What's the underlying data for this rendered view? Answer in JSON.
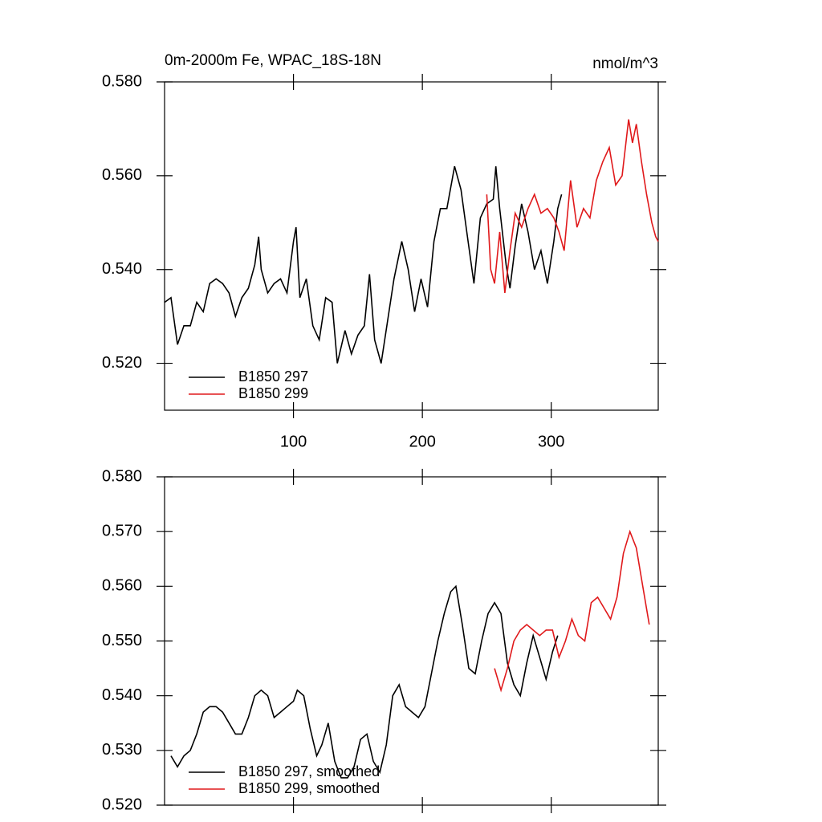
{
  "chart_data": [
    {
      "type": "line",
      "title": "0m-2000m Fe, WPAC_18S-18N",
      "unit_label": "nmol/m^3",
      "xlim": [
        0,
        383
      ],
      "xticks": [
        100,
        200,
        300
      ],
      "show_xtick_labels": true,
      "ylim": [
        0.51,
        0.58
      ],
      "yticks": [
        {
          "value": 0.52,
          "label": "0.520"
        },
        {
          "value": 0.54,
          "label": "0.540"
        },
        {
          "value": 0.56,
          "label": "0.560"
        },
        {
          "value": 0.58,
          "label": "0.580"
        }
      ],
      "legend": "lower left",
      "series": [
        {
          "name": "B1850 297",
          "color": "#000000",
          "x": [
            0,
            5,
            10,
            15,
            20,
            25,
            30,
            35,
            40,
            45,
            50,
            55,
            60,
            65,
            70,
            73,
            75,
            80,
            85,
            90,
            95,
            100,
            102,
            105,
            110,
            115,
            120,
            125,
            130,
            134,
            140,
            145,
            150,
            155,
            159,
            163,
            168,
            173,
            178,
            184,
            189,
            194,
            199,
            204,
            209,
            214,
            219,
            225,
            230,
            235,
            240,
            245,
            250,
            255,
            257,
            260,
            265,
            268,
            272,
            277,
            282,
            287,
            292,
            297,
            302,
            305,
            308
          ],
          "values": [
            0.533,
            0.534,
            0.524,
            0.528,
            0.528,
            0.533,
            0.531,
            0.537,
            0.538,
            0.537,
            0.535,
            0.53,
            0.534,
            0.536,
            0.541,
            0.547,
            0.54,
            0.535,
            0.537,
            0.538,
            0.535,
            0.546,
            0.549,
            0.534,
            0.538,
            0.528,
            0.525,
            0.534,
            0.533,
            0.52,
            0.527,
            0.522,
            0.526,
            0.528,
            0.539,
            0.525,
            0.52,
            0.529,
            0.538,
            0.546,
            0.54,
            0.531,
            0.538,
            0.532,
            0.546,
            0.553,
            0.553,
            0.562,
            0.557,
            0.547,
            0.537,
            0.551,
            0.554,
            0.555,
            0.562,
            0.553,
            0.541,
            0.536,
            0.545,
            0.554,
            0.548,
            0.54,
            0.544,
            0.537,
            0.546,
            0.553,
            0.556
          ]
        },
        {
          "name": "B1850 299",
          "color": "#e0191b",
          "x": [
            250,
            253,
            256,
            260,
            264,
            268,
            272,
            277,
            282,
            287,
            292,
            297,
            302,
            306,
            310,
            315,
            320,
            325,
            330,
            335,
            340,
            345,
            350,
            355,
            360,
            363,
            366,
            370,
            374,
            378,
            381,
            383
          ],
          "values": [
            0.556,
            0.54,
            0.537,
            0.548,
            0.535,
            0.544,
            0.552,
            0.549,
            0.553,
            0.556,
            0.552,
            0.553,
            0.551,
            0.548,
            0.544,
            0.559,
            0.549,
            0.553,
            0.551,
            0.559,
            0.563,
            0.566,
            0.558,
            0.56,
            0.572,
            0.567,
            0.571,
            0.563,
            0.556,
            0.55,
            0.547,
            0.546
          ]
        }
      ]
    },
    {
      "type": "line",
      "xlim": [
        0,
        383
      ],
      "xticks": [
        100,
        200,
        300
      ],
      "show_xtick_labels": false,
      "ylim": [
        0.52,
        0.58
      ],
      "yticks": [
        {
          "value": 0.52,
          "label": "0.520"
        },
        {
          "value": 0.53,
          "label": "0.530"
        },
        {
          "value": 0.54,
          "label": "0.540"
        },
        {
          "value": 0.55,
          "label": "0.550"
        },
        {
          "value": 0.56,
          "label": "0.560"
        },
        {
          "value": 0.57,
          "label": "0.570"
        },
        {
          "value": 0.58,
          "label": "0.580"
        }
      ],
      "legend": "lower left",
      "series": [
        {
          "name": "B1850 297, smoothed",
          "color": "#000000",
          "x": [
            5,
            10,
            15,
            20,
            25,
            30,
            35,
            40,
            45,
            50,
            55,
            60,
            65,
            70,
            75,
            80,
            85,
            90,
            95,
            100,
            103,
            108,
            113,
            118,
            122,
            127,
            132,
            137,
            142,
            147,
            152,
            157,
            162,
            167,
            172,
            177,
            182,
            187,
            192,
            197,
            202,
            207,
            212,
            217,
            222,
            226,
            231,
            236,
            241,
            246,
            251,
            256,
            261,
            266,
            271,
            276,
            281,
            286,
            291,
            296,
            301,
            305
          ],
          "values": [
            0.529,
            0.527,
            0.529,
            0.53,
            0.533,
            0.537,
            0.538,
            0.538,
            0.537,
            0.535,
            0.533,
            0.533,
            0.536,
            0.54,
            0.541,
            0.54,
            0.536,
            0.537,
            0.538,
            0.539,
            0.541,
            0.54,
            0.534,
            0.529,
            0.531,
            0.535,
            0.528,
            0.525,
            0.525,
            0.527,
            0.532,
            0.533,
            0.528,
            0.526,
            0.531,
            0.54,
            0.542,
            0.538,
            0.537,
            0.536,
            0.538,
            0.544,
            0.55,
            0.555,
            0.559,
            0.56,
            0.553,
            0.545,
            0.544,
            0.55,
            0.555,
            0.557,
            0.555,
            0.546,
            0.542,
            0.54,
            0.546,
            0.551,
            0.547,
            0.543,
            0.548,
            0.551
          ]
        },
        {
          "name": "B1850 299, smoothed",
          "color": "#e0191b",
          "x": [
            256,
            261,
            266,
            271,
            276,
            281,
            286,
            291,
            296,
            301,
            306,
            311,
            316,
            321,
            326,
            331,
            336,
            341,
            346,
            351,
            356,
            361,
            366,
            371,
            376
          ],
          "values": [
            0.545,
            0.541,
            0.545,
            0.55,
            0.552,
            0.553,
            0.552,
            0.551,
            0.552,
            0.552,
            0.547,
            0.55,
            0.554,
            0.551,
            0.55,
            0.557,
            0.558,
            0.556,
            0.554,
            0.558,
            0.566,
            0.57,
            0.567,
            0.56,
            0.553
          ]
        }
      ]
    }
  ]
}
